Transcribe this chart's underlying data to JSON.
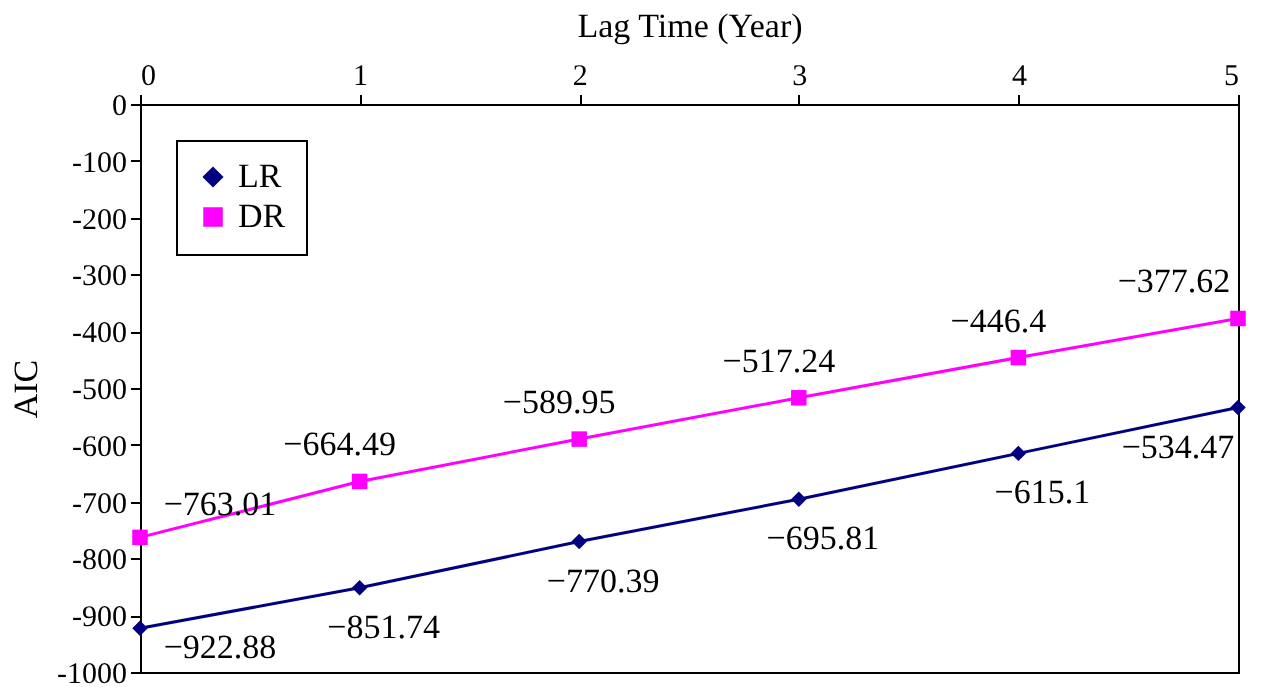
{
  "chart_data": {
    "type": "line",
    "xlabel": "Lag Time (Year)",
    "ylabel": "AIC",
    "x": [
      0,
      1,
      2,
      3,
      4,
      5
    ],
    "xlim": [
      0,
      5
    ],
    "xticks": [
      0,
      1,
      2,
      3,
      4,
      5
    ],
    "ylim": [
      -1000,
      0
    ],
    "yticks": [
      -1000,
      -900,
      -800,
      -700,
      -600,
      -500,
      -400,
      -300,
      -200,
      -100,
      0
    ],
    "legend": "top left",
    "grid": false,
    "series": [
      {
        "name": "LR",
        "color": "#000080",
        "marker": "diamond",
        "values": [
          -922.88,
          -851.74,
          -770.39,
          -695.81,
          -615.1,
          -534.47
        ],
        "value_labels": [
          "−922.88",
          "−851.74",
          "−770.39",
          "−695.81",
          "−615.1",
          "−534.47"
        ]
      },
      {
        "name": "DR",
        "color": "#ff00ff",
        "marker": "square",
        "values": [
          -763.01,
          -664.49,
          -589.95,
          -517.24,
          -446.4,
          -377.62
        ],
        "value_labels": [
          "−763.01",
          "−664.49",
          "−589.95",
          "−517.24",
          "−446.4",
          "−377.62"
        ]
      }
    ]
  }
}
